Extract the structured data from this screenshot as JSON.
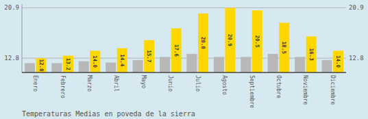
{
  "chart_data": {
    "type": "bar",
    "title": "Temperaturas Medias en poveda de la sierra",
    "categories": [
      "Enero",
      "Febrero",
      "Marzo",
      "Abril",
      "Mayo",
      "Junio",
      "Julio",
      "Agosto",
      "Septiembre",
      "Octubre",
      "Noviembre",
      "Diciembre"
    ],
    "series": [
      {
        "color": "#B8B8B8",
        "values": [
          12.0,
          12.0,
          12.3,
          12.1,
          12.5,
          13.0,
          13.5,
          13.0,
          13.0,
          13.5,
          13.0,
          12.5
        ]
      },
      {
        "color": "#FFD700",
        "values": [
          12.8,
          13.2,
          14.0,
          14.4,
          15.7,
          17.6,
          20.0,
          20.9,
          20.5,
          18.5,
          16.3,
          14.0
        ],
        "value_labels": [
          "12.8",
          "13.2",
          "14.0",
          "14.4",
          "15.7",
          "17.6",
          "20.0",
          "20.9",
          "20.5",
          "18.5",
          "16.3",
          "14.0"
        ],
        "data_labels": true
      }
    ],
    "ylim": [
      10.5,
      21.5
    ],
    "yticks": [
      12.8,
      20.9
    ],
    "grid": true
  }
}
